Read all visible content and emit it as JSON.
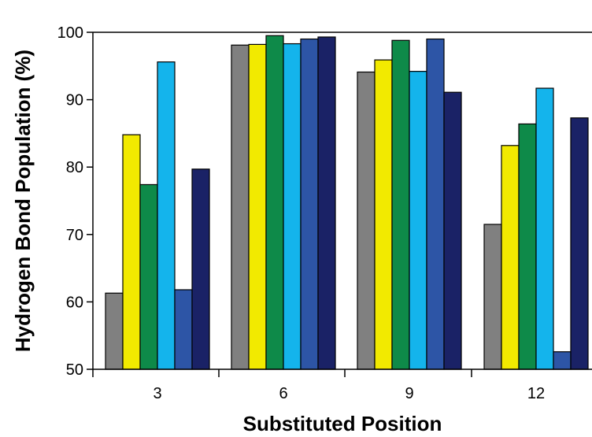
{
  "chart_data": {
    "type": "bar",
    "title": "",
    "xlabel": "Substituted Position",
    "ylabel": "Hydrogen Bond Population (%)",
    "ylim": [
      50,
      100
    ],
    "yticks": [
      50,
      60,
      70,
      80,
      90,
      100
    ],
    "categories": [
      "3",
      "6",
      "9",
      "12"
    ],
    "grid": false,
    "legend": "none",
    "series": [
      {
        "color": "#808080",
        "values": [
          61.3,
          98.1,
          94.1,
          71.5
        ]
      },
      {
        "color": "#f2ea00",
        "values": [
          84.8,
          98.2,
          95.9,
          83.2
        ]
      },
      {
        "color": "#0e8a49",
        "values": [
          77.4,
          99.5,
          98.8,
          86.4
        ]
      },
      {
        "color": "#14b4ec",
        "values": [
          95.6,
          98.3,
          94.2,
          91.7
        ]
      },
      {
        "color": "#2d55a6",
        "values": [
          61.8,
          99.0,
          99.0,
          52.6
        ]
      },
      {
        "color": "#1a2266",
        "values": [
          79.7,
          99.3,
          91.1,
          87.3
        ]
      }
    ]
  }
}
